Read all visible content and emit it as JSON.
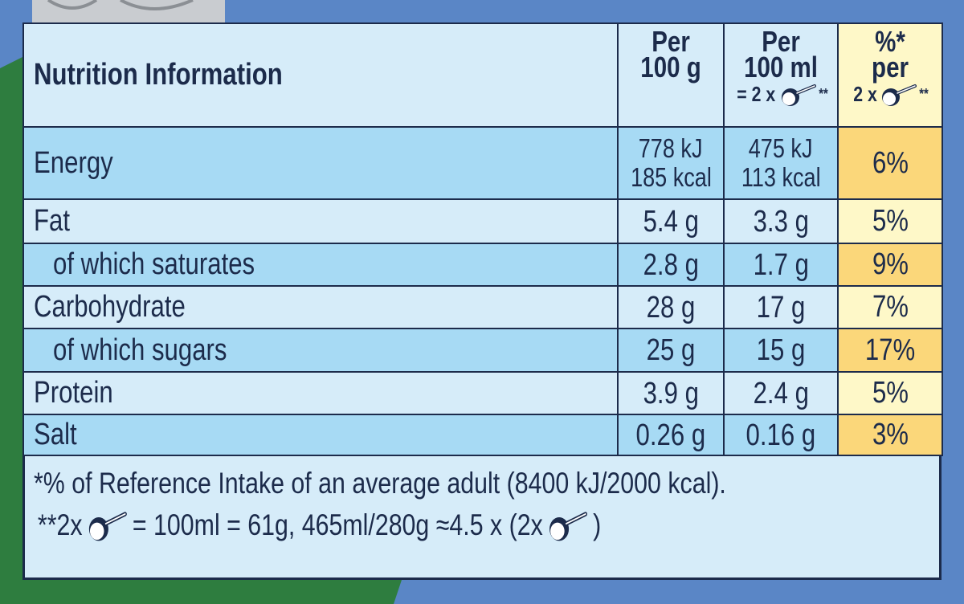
{
  "header": {
    "title": "Nutrition Information",
    "columns": [
      {
        "lines": [
          "Per",
          "100 g"
        ]
      },
      {
        "lines": [
          "Per",
          "100 ml"
        ],
        "serving": "= 2 x",
        "mark": "**"
      },
      {
        "lines": [
          "%*",
          "per"
        ],
        "serving": "2 x",
        "mark": "**"
      }
    ]
  },
  "rows": [
    {
      "label": "Energy",
      "per_100g": [
        "778 kJ",
        "185 kcal"
      ],
      "per_100ml": [
        "475 kJ",
        "113 kcal"
      ],
      "ri": "6%"
    },
    {
      "label": "Fat",
      "per_100g": [
        "5.4 g"
      ],
      "per_100ml": [
        "3.3 g"
      ],
      "ri": "5%"
    },
    {
      "label": "of which saturates",
      "per_100g": [
        "2.8 g"
      ],
      "per_100ml": [
        "1.7 g"
      ],
      "ri": "9%"
    },
    {
      "label": "Carbohydrate",
      "per_100g": [
        "28 g"
      ],
      "per_100ml": [
        "17 g"
      ],
      "ri": "7%"
    },
    {
      "label": "of which sugars",
      "per_100g": [
        "25 g"
      ],
      "per_100ml": [
        "15 g"
      ],
      "ri": "17%"
    },
    {
      "label": "Protein",
      "per_100g": [
        "3.9 g"
      ],
      "per_100ml": [
        "2.4 g"
      ],
      "ri": "5%"
    },
    {
      "label": "Salt",
      "per_100g": [
        "0.26 g"
      ],
      "per_100ml": [
        "0.16 g"
      ],
      "ri": "3%"
    }
  ],
  "footnotes": {
    "reference": "*% of Reference Intake of an average adult (8400 kJ/2000 kcal).",
    "serving": [
      "**2x",
      "= 100ml = 61g, 465ml/280g ≈4.5 x (2x",
      ")"
    ]
  }
}
